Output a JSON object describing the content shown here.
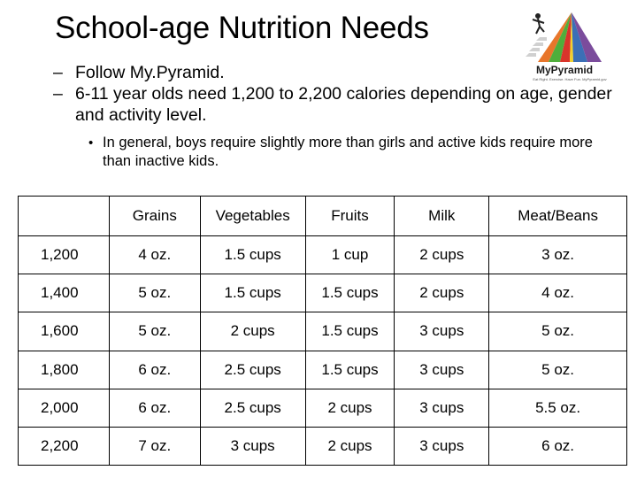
{
  "slide": {
    "title": "School-age Nutrition Needs",
    "bullets": [
      {
        "marker": "–",
        "text": "Follow My.Pyramid."
      },
      {
        "marker": "–",
        "text": "6-11 year olds need 1,200 to 2,200 calories depending on age, gender and activity level."
      }
    ],
    "sub_bullet": {
      "marker": "•",
      "text": "In general, boys require slightly more than girls and active kids require more than inactive kids."
    }
  },
  "logo": {
    "wordmark": "MyPyramid",
    "tagline": "Eat Right. Exercise. Have Fun. MyPyramid.gov",
    "colors": [
      "#e8762b",
      "#4fae3b",
      "#d9342b",
      "#f2d02b",
      "#3b6fb6",
      "#7b4c9c"
    ]
  },
  "table": {
    "headers": [
      "",
      "Grains",
      "Vegetables",
      "Fruits",
      "Milk",
      "Meat/Beans"
    ],
    "rows": [
      [
        "1,200",
        "4 oz.",
        "1.5 cups",
        "1 cup",
        "2 cups",
        "3 oz."
      ],
      [
        "1,400",
        "5 oz.",
        "1.5 cups",
        "1.5 cups",
        "2 cups",
        "4 oz."
      ],
      [
        "1,600",
        "5 oz.",
        "2 cups",
        "1.5 cups",
        "3 cups",
        "5 oz."
      ],
      [
        "1,800",
        "6 oz.",
        "2.5 cups",
        "1.5 cups",
        "3 cups",
        "5 oz."
      ],
      [
        "2,000",
        "6 oz.",
        "2.5 cups",
        "2 cups",
        "3 cups",
        "5.5 oz."
      ],
      [
        "2,200",
        "7 oz.",
        "3 cups",
        "2 cups",
        "3 cups",
        "6 oz."
      ]
    ]
  }
}
